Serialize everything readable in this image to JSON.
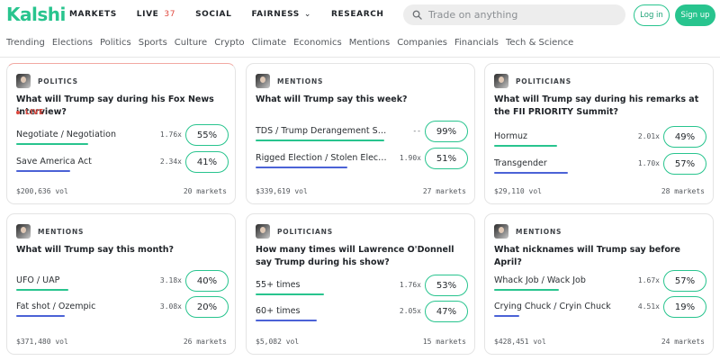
{
  "header": {
    "logo": "Kalshi",
    "nav": [
      {
        "label": "MARKETS"
      },
      {
        "label": "LIVE",
        "count": "37"
      },
      {
        "label": "SOCIAL"
      },
      {
        "label": "FAIRNESS",
        "chevron": "⌄"
      },
      {
        "label": "RESEARCH"
      }
    ],
    "search_placeholder": "Trade on anything",
    "login": "Log in",
    "signup": "Sign up"
  },
  "categories": [
    "Trending",
    "Elections",
    "Politics",
    "Sports",
    "Culture",
    "Crypto",
    "Climate",
    "Economics",
    "Mentions",
    "Companies",
    "Financials",
    "Tech & Science"
  ],
  "colors": {
    "brand": "#28c48e",
    "live": "#e0493f",
    "bar_green": "#28c48e",
    "bar_blue": "#4b62d6"
  },
  "cards": [
    {
      "category": "POLITICS",
      "icon": "trump-thumbnail",
      "title": "What will Trump say during his Fox News interview?",
      "live": "LIVE",
      "options": [
        {
          "name": "Negotiate / Negotiation",
          "multiplier": "1.76x",
          "chance": "55%",
          "bar": "green"
        },
        {
          "name": "Save America Act",
          "multiplier": "2.34x",
          "chance": "41%",
          "bar": "blue"
        }
      ],
      "volume": "$200,636 vol",
      "markets": "20 markets"
    },
    {
      "category": "MENTIONS",
      "icon": "trump-thumbnail",
      "title": "What will Trump say this week?",
      "options": [
        {
          "name": "TDS / Trump Derangement Syn...",
          "multiplier": "--",
          "chance": "99%",
          "bar": "green"
        },
        {
          "name": "Rigged Election / Stolen Election",
          "multiplier": "1.90x",
          "chance": "51%",
          "bar": "blue"
        }
      ],
      "volume": "$339,619 vol",
      "markets": "27 markets"
    },
    {
      "category": "POLITICIANS",
      "icon": "trump-thumbnail",
      "title": "What will Trump say during his remarks at the FII PRIORITY Summit?",
      "options": [
        {
          "name": "Hormuz",
          "multiplier": "2.01x",
          "chance": "49%",
          "bar": "green"
        },
        {
          "name": "Transgender",
          "multiplier": "1.70x",
          "chance": "57%",
          "bar": "blue"
        }
      ],
      "volume": "$29,110 vol",
      "markets": "28 markets"
    },
    {
      "category": "MENTIONS",
      "icon": "trump-thumbnail",
      "title": "What will Trump say this month?",
      "options": [
        {
          "name": "UFO / UAP",
          "multiplier": "3.18x",
          "chance": "40%",
          "bar": "green"
        },
        {
          "name": "Fat shot / Ozempic",
          "multiplier": "3.08x",
          "chance": "20%",
          "bar": "blue"
        }
      ],
      "volume": "$371,480 vol",
      "markets": "26 markets"
    },
    {
      "category": "POLITICIANS",
      "icon": "odonnell-thumbnail",
      "title": "How many times will Lawrence O'Donnell say Trump during his show?",
      "options": [
        {
          "name": "55+ times",
          "multiplier": "1.76x",
          "chance": "53%",
          "bar": "green"
        },
        {
          "name": "60+ times",
          "multiplier": "2.05x",
          "chance": "47%",
          "bar": "blue"
        }
      ],
      "volume": "$5,082 vol",
      "markets": "15 markets"
    },
    {
      "category": "MENTIONS",
      "icon": "trump-thumbnail",
      "title": "What nicknames will Trump say before April?",
      "options": [
        {
          "name": "Whack Job / Wack Job",
          "multiplier": "1.67x",
          "chance": "57%",
          "bar": "green"
        },
        {
          "name": "Crying Chuck / Cryin Chuck",
          "multiplier": "4.51x",
          "chance": "19%",
          "bar": "blue"
        }
      ],
      "volume": "$428,451 vol",
      "markets": "24 markets"
    }
  ]
}
